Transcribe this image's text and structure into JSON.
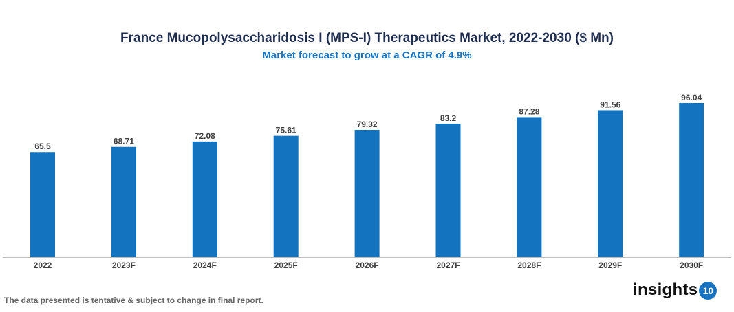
{
  "chart_data": {
    "type": "bar",
    "title": "France Mucopolysaccharidosis I (MPS-I) Therapeutics Market, 2022-2030 ($ Mn)",
    "subtitle": "Market forecast to grow at a CAGR of 4.9%",
    "categories": [
      "2022",
      "2023F",
      "2024F",
      "2025F",
      "2026F",
      "2027F",
      "2028F",
      "2029F",
      "2030F"
    ],
    "values": [
      65.5,
      68.71,
      72.08,
      75.61,
      79.32,
      83.2,
      87.28,
      91.56,
      96.04
    ],
    "data_labels": [
      "65.5",
      "68.71",
      "72.08",
      "75.61",
      "79.32",
      "83.2",
      "87.28",
      "91.56",
      "96.04"
    ],
    "xlabel": "",
    "ylabel": "",
    "ylim": [
      0,
      96.04
    ],
    "grid": false,
    "bar_color": "#1473be"
  },
  "footer": "The data presented is tentative & subject to change in final report.",
  "logo": {
    "text": "insights",
    "badge": "10"
  }
}
